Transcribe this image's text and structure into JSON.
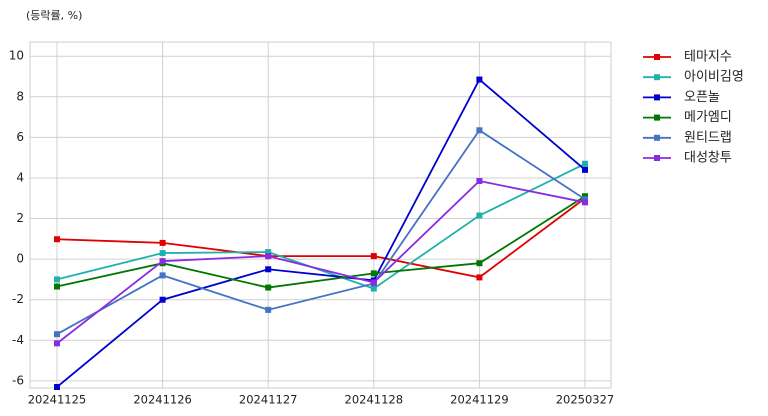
{
  "chart_data": {
    "type": "line",
    "title": "(등락률, %)",
    "categories": [
      "20241125",
      "20241126",
      "20241127",
      "20241128",
      "20241129",
      "20250327"
    ],
    "series": [
      {
        "name": "테마지수",
        "color": "#e00000",
        "values": [
          0.98,
          0.8,
          0.15,
          0.15,
          -0.9,
          3.0
        ]
      },
      {
        "name": "아이비김영",
        "color": "#20b2aa",
        "values": [
          -1.0,
          0.3,
          0.35,
          -1.45,
          2.15,
          4.7
        ]
      },
      {
        "name": "오픈놀",
        "color": "#0000d0",
        "values": [
          -6.3,
          -2.0,
          -0.5,
          -1.05,
          8.85,
          4.4
        ]
      },
      {
        "name": "메가엠디",
        "color": "#007700",
        "values": [
          -1.35,
          -0.2,
          -1.4,
          -0.7,
          -0.2,
          3.1
        ]
      },
      {
        "name": "원티드랩",
        "color": "#4472c4",
        "values": [
          -3.7,
          -0.8,
          -2.5,
          -1.2,
          6.35,
          2.95
        ]
      },
      {
        "name": "대성창투",
        "color": "#8a2be2",
        "values": [
          -4.15,
          -0.1,
          0.15,
          -1.15,
          3.85,
          2.8
        ]
      }
    ],
    "ylim": [
      -6.35,
      10.7
    ],
    "yticks": [
      -6,
      -4,
      -2,
      0,
      2,
      4,
      6,
      8,
      10
    ],
    "grid": true,
    "legend": "outside-right"
  }
}
